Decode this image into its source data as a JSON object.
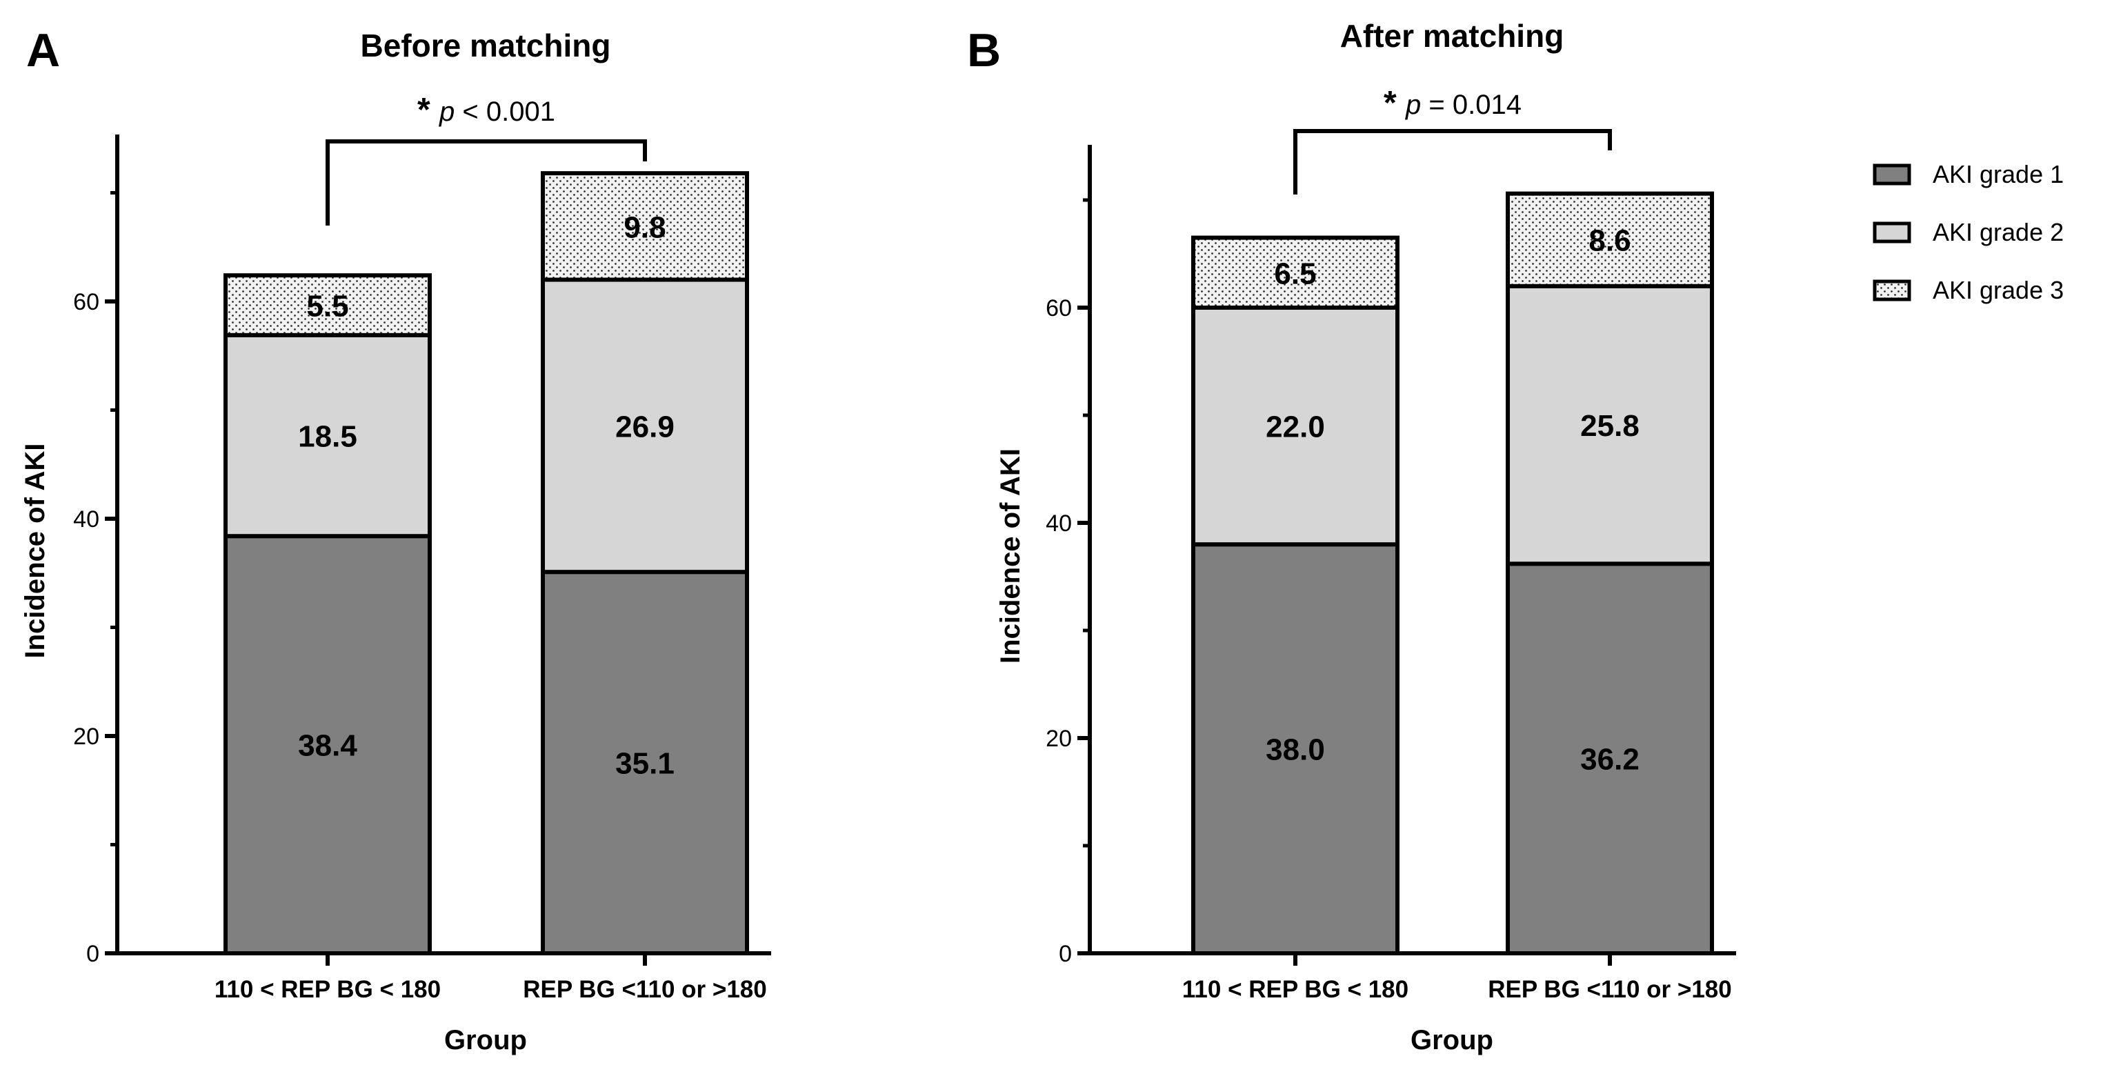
{
  "figure": {
    "colors": {
      "grade1": "#808080",
      "grade2": "#d6d6d6",
      "grade3": "#f2f2f2",
      "stroke": "#000000"
    },
    "legend": [
      {
        "label": "AKI grade 1",
        "pattern": "solid-dark"
      },
      {
        "label": "AKI grade 2",
        "pattern": "solid-light"
      },
      {
        "label": "AKI grade 3",
        "pattern": "dotted"
      }
    ]
  },
  "chart_data": [
    {
      "type": "bar",
      "stacked": true,
      "panel": "A",
      "title": "Before matching",
      "xlabel": "Group",
      "ylabel": "Incidence of AKI",
      "ylim": [
        0,
        75
      ],
      "yticks": [
        0,
        20,
        40,
        60
      ],
      "categories": [
        "110 < REP BG < 180",
        "REP BG <110 or >180"
      ],
      "series": [
        {
          "name": "AKI grade 1",
          "values": [
            38.4,
            35.1
          ]
        },
        {
          "name": "AKI grade 2",
          "values": [
            18.5,
            26.9
          ]
        },
        {
          "name": "AKI grade 3",
          "values": [
            5.5,
            9.8
          ]
        }
      ],
      "annotation": {
        "star": "*",
        "p_symbol": "p",
        "p_text": "< 0.001"
      }
    },
    {
      "type": "bar",
      "stacked": true,
      "panel": "B",
      "title": "After matching",
      "xlabel": "Group",
      "ylabel": "Incidence of AKI",
      "ylim": [
        0,
        75
      ],
      "yticks": [
        0,
        20,
        40,
        60
      ],
      "categories": [
        "110 < REP BG < 180",
        "REP BG <110 or >180"
      ],
      "series": [
        {
          "name": "AKI grade 1",
          "values": [
            38.0,
            36.2
          ]
        },
        {
          "name": "AKI grade 2",
          "values": [
            22.0,
            25.8
          ]
        },
        {
          "name": "AKI grade 3",
          "values": [
            6.5,
            8.6
          ]
        }
      ],
      "annotation": {
        "star": "*",
        "p_symbol": "p",
        "p_text": "= 0.014"
      }
    }
  ]
}
